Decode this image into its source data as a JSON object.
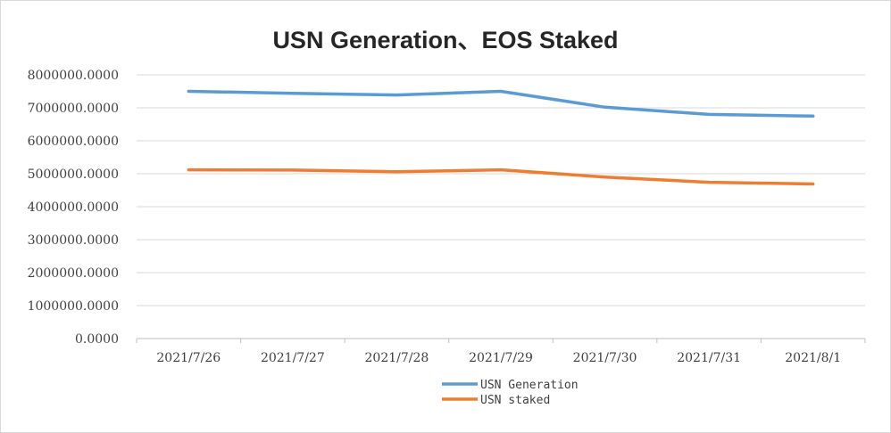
{
  "chart_data": {
    "type": "line",
    "title": "USN Generation、EOS Staked",
    "xlabel": "",
    "ylabel": "",
    "categories": [
      "2021/7/26",
      "2021/7/27",
      "2021/7/28",
      "2021/7/29",
      "2021/7/30",
      "2021/7/31",
      "2021/8/1"
    ],
    "ylim": [
      0,
      8000000
    ],
    "yticks": [
      0,
      1000000,
      2000000,
      3000000,
      4000000,
      5000000,
      6000000,
      7000000,
      8000000
    ],
    "ytick_labels": [
      "0.0000",
      "1000000.0000",
      "2000000.0000",
      "3000000.0000",
      "4000000.0000",
      "5000000.0000",
      "6000000.0000",
      "7000000.0000",
      "8000000.0000"
    ],
    "grid": true,
    "legend_position": "bottom",
    "series": [
      {
        "name": "USN Generation",
        "color": "#5b9bd5",
        "values": [
          7500000,
          7440000,
          7390000,
          7500000,
          7020000,
          6800000,
          6750000
        ]
      },
      {
        "name": "USN staked",
        "color": "#ed7d31",
        "values": [
          5120000,
          5110000,
          5060000,
          5120000,
          4900000,
          4740000,
          4690000
        ]
      }
    ]
  }
}
